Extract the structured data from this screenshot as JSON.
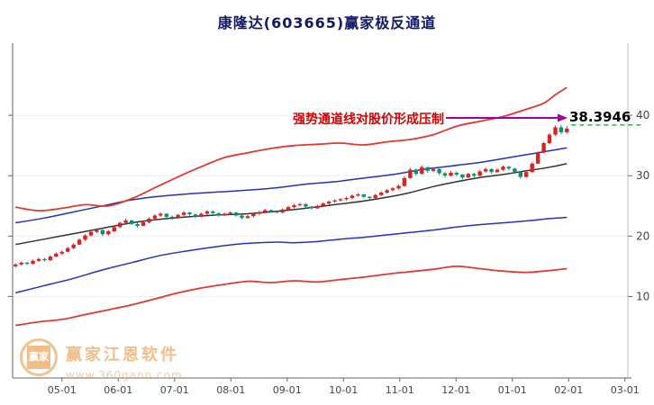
{
  "title": "康隆达(603665)赢家极反通道",
  "annotation": {
    "text": "强势通道线对股价形成压制",
    "price_label": "38.3946"
  },
  "watermark": {
    "logo_text": "赢家",
    "brand": "赢家江恩软件",
    "url": "www.360gann.com"
  },
  "chart_data": {
    "type": "candlestick",
    "title": "康隆达(603665)赢家极反通道",
    "x_tick_labels": [
      "05-01",
      "06-01",
      "07-01",
      "08-01",
      "09-01",
      "10-01",
      "11-01",
      "12-01",
      "01-01",
      "02-01",
      "03-01"
    ],
    "x_tick_indices": [
      8,
      17.7,
      27.4,
      37.1,
      46.8,
      56.5,
      66.2,
      75.9,
      85.6,
      95.3,
      105
    ],
    "total_slots": 106,
    "y_ticks": [
      10,
      20,
      30,
      40
    ],
    "ylim": [
      0,
      45
    ],
    "grid": "faint-horizontal",
    "legend": "none",
    "resistance_level": 38.3946,
    "colors": {
      "up": "#d62424",
      "down": "#0f8f72",
      "channel_outer": "#e03a2f",
      "channel_inner": "#2233bb",
      "channel_mid": "#333333",
      "resistance_line": "#0aa02e",
      "arrow": "#a0009b",
      "annotation_text": "#d40000",
      "axis": "#666666"
    },
    "ohlc": [
      [
        15.0,
        15.5,
        14.8,
        15.3
      ],
      [
        15.3,
        15.8,
        15.1,
        15.6
      ],
      [
        15.6,
        15.7,
        15.2,
        15.4
      ],
      [
        15.4,
        16.1,
        15.3,
        15.9
      ],
      [
        15.9,
        16.4,
        15.7,
        16.2
      ],
      [
        16.2,
        16.4,
        15.8,
        16.0
      ],
      [
        16.0,
        16.8,
        15.9,
        16.6
      ],
      [
        16.6,
        17.3,
        16.5,
        17.1
      ],
      [
        17.1,
        17.6,
        16.9,
        17.4
      ],
      [
        17.4,
        18.2,
        17.3,
        18.0
      ],
      [
        18.0,
        18.8,
        17.8,
        18.6
      ],
      [
        18.6,
        19.6,
        18.5,
        19.4
      ],
      [
        19.4,
        20.3,
        19.2,
        20.1
      ],
      [
        20.1,
        20.9,
        19.9,
        20.7
      ],
      [
        20.7,
        21.3,
        20.5,
        21.0
      ],
      [
        21.0,
        21.1,
        20.0,
        20.3
      ],
      [
        20.3,
        21.0,
        20.1,
        20.8
      ],
      [
        20.8,
        21.7,
        20.6,
        21.5
      ],
      [
        21.5,
        22.4,
        21.3,
        22.2
      ],
      [
        22.2,
        22.9,
        22.0,
        22.6
      ],
      [
        22.6,
        22.7,
        21.8,
        22.0
      ],
      [
        22.0,
        22.2,
        21.4,
        21.7
      ],
      [
        21.7,
        22.5,
        21.6,
        22.3
      ],
      [
        22.3,
        23.1,
        22.1,
        22.9
      ],
      [
        22.9,
        23.6,
        22.7,
        23.4
      ],
      [
        23.4,
        23.9,
        23.2,
        23.7
      ],
      [
        23.7,
        23.8,
        23.0,
        23.2
      ],
      [
        23.2,
        23.4,
        22.7,
        23.0
      ],
      [
        23.0,
        23.7,
        22.9,
        23.5
      ],
      [
        23.5,
        24.1,
        23.3,
        23.9
      ],
      [
        23.9,
        24.0,
        23.4,
        23.6
      ],
      [
        23.6,
        23.7,
        23.0,
        23.2
      ],
      [
        23.2,
        23.9,
        23.1,
        23.7
      ],
      [
        23.7,
        24.3,
        23.5,
        24.1
      ],
      [
        24.1,
        24.2,
        23.6,
        23.8
      ],
      [
        23.8,
        23.9,
        23.2,
        23.4
      ],
      [
        23.4,
        23.9,
        23.3,
        23.7
      ],
      [
        23.7,
        24.1,
        23.5,
        23.9
      ],
      [
        23.9,
        24.0,
        23.2,
        23.4
      ],
      [
        23.4,
        23.5,
        22.8,
        23.0
      ],
      [
        23.0,
        23.5,
        22.9,
        23.3
      ],
      [
        23.3,
        23.9,
        23.1,
        23.7
      ],
      [
        23.7,
        24.2,
        23.5,
        24.0
      ],
      [
        24.0,
        24.5,
        23.8,
        24.3
      ],
      [
        24.3,
        24.4,
        23.9,
        24.1
      ],
      [
        24.1,
        24.2,
        23.7,
        23.9
      ],
      [
        23.9,
        24.6,
        23.8,
        24.4
      ],
      [
        24.4,
        25.0,
        24.2,
        24.8
      ],
      [
        24.8,
        25.3,
        24.6,
        25.1
      ],
      [
        25.1,
        25.5,
        24.9,
        25.3
      ],
      [
        25.3,
        25.4,
        24.7,
        24.9
      ],
      [
        24.9,
        25.0,
        24.4,
        24.6
      ],
      [
        24.6,
        25.2,
        24.5,
        25.0
      ],
      [
        25.0,
        25.6,
        24.8,
        25.4
      ],
      [
        25.4,
        25.9,
        25.2,
        25.7
      ],
      [
        25.7,
        26.1,
        25.5,
        25.9
      ],
      [
        25.9,
        26.3,
        25.7,
        26.1
      ],
      [
        26.1,
        26.5,
        25.9,
        26.3
      ],
      [
        26.3,
        26.9,
        26.1,
        26.7
      ],
      [
        26.7,
        27.1,
        26.5,
        26.9
      ],
      [
        26.9,
        27.0,
        26.3,
        26.5
      ],
      [
        26.5,
        26.6,
        26.0,
        26.3
      ],
      [
        26.3,
        27.0,
        26.2,
        26.8
      ],
      [
        26.8,
        27.4,
        26.6,
        27.2
      ],
      [
        27.2,
        27.8,
        27.0,
        27.6
      ],
      [
        27.6,
        28.1,
        27.4,
        27.9
      ],
      [
        27.9,
        28.5,
        27.7,
        28.3
      ],
      [
        28.3,
        29.9,
        28.2,
        29.6
      ],
      [
        29.6,
        31.3,
        29.5,
        31.0
      ],
      [
        31.0,
        31.2,
        30.0,
        30.3
      ],
      [
        30.3,
        31.7,
        30.2,
        31.4
      ],
      [
        31.4,
        31.5,
        30.5,
        30.8
      ],
      [
        30.8,
        31.4,
        30.6,
        31.1
      ],
      [
        31.1,
        31.2,
        30.1,
        30.4
      ],
      [
        30.4,
        30.6,
        29.7,
        30.0
      ],
      [
        30.0,
        30.8,
        29.9,
        30.5
      ],
      [
        30.5,
        30.7,
        29.9,
        30.2
      ],
      [
        30.2,
        30.3,
        29.4,
        29.7
      ],
      [
        29.7,
        30.5,
        29.6,
        30.3
      ],
      [
        30.3,
        30.5,
        29.7,
        30.0
      ],
      [
        30.0,
        30.9,
        29.9,
        30.7
      ],
      [
        30.7,
        31.3,
        30.5,
        31.1
      ],
      [
        31.1,
        31.2,
        30.3,
        30.6
      ],
      [
        30.6,
        31.2,
        30.5,
        31.0
      ],
      [
        31.0,
        31.7,
        30.8,
        31.5
      ],
      [
        31.5,
        31.6,
        30.9,
        31.2
      ],
      [
        31.2,
        31.3,
        30.3,
        30.6
      ],
      [
        30.6,
        30.7,
        29.5,
        29.8
      ],
      [
        29.8,
        30.8,
        29.7,
        30.6
      ],
      [
        30.6,
        32.2,
        30.5,
        32.0
      ],
      [
        32.0,
        34.0,
        31.9,
        33.8
      ],
      [
        33.8,
        35.6,
        33.7,
        35.4
      ],
      [
        35.4,
        37.0,
        35.2,
        36.8
      ],
      [
        36.8,
        38.3,
        36.6,
        38.0
      ],
      [
        38.0,
        38.4,
        36.9,
        37.2
      ],
      [
        37.2,
        38.2,
        37.0,
        37.8
      ]
    ],
    "channels": {
      "upper_outer": [
        [
          0,
          24.8
        ],
        [
          4,
          24.2
        ],
        [
          8,
          24.6
        ],
        [
          12,
          25.2
        ],
        [
          16,
          25.0
        ],
        [
          20,
          26.2
        ],
        [
          24,
          28.0
        ],
        [
          28,
          29.8
        ],
        [
          32,
          31.5
        ],
        [
          36,
          33.0
        ],
        [
          40,
          33.8
        ],
        [
          44,
          34.5
        ],
        [
          48,
          35.0
        ],
        [
          52,
          35.2
        ],
        [
          56,
          35.4
        ],
        [
          60,
          35.1
        ],
        [
          64,
          35.6
        ],
        [
          68,
          36.0
        ],
        [
          72,
          36.8
        ],
        [
          76,
          38.2
        ],
        [
          80,
          39.0
        ],
        [
          84,
          39.8
        ],
        [
          88,
          41.0
        ],
        [
          91,
          42.0
        ],
        [
          93,
          43.4
        ],
        [
          95,
          44.6
        ]
      ],
      "upper_inner": [
        [
          0,
          22.2
        ],
        [
          5,
          23.0
        ],
        [
          10,
          24.0
        ],
        [
          15,
          25.0
        ],
        [
          20,
          26.0
        ],
        [
          25,
          26.6
        ],
        [
          30,
          27.0
        ],
        [
          35,
          27.3
        ],
        [
          40,
          27.6
        ],
        [
          45,
          28.0
        ],
        [
          50,
          28.6
        ],
        [
          55,
          29.0
        ],
        [
          60,
          29.6
        ],
        [
          65,
          30.2
        ],
        [
          70,
          31.0
        ],
        [
          75,
          31.6
        ],
        [
          80,
          32.2
        ],
        [
          85,
          33.0
        ],
        [
          90,
          33.8
        ],
        [
          95,
          34.6
        ]
      ],
      "middle": [
        [
          0,
          18.6
        ],
        [
          5,
          19.5
        ],
        [
          10,
          20.4
        ],
        [
          15,
          21.3
        ],
        [
          20,
          22.2
        ],
        [
          25,
          22.8
        ],
        [
          30,
          23.2
        ],
        [
          35,
          23.5
        ],
        [
          40,
          23.7
        ],
        [
          45,
          24.1
        ],
        [
          50,
          24.6
        ],
        [
          55,
          25.2
        ],
        [
          60,
          25.8
        ],
        [
          65,
          26.6
        ],
        [
          68,
          27.2
        ],
        [
          72,
          28.2
        ],
        [
          76,
          29.0
        ],
        [
          80,
          29.7
        ],
        [
          84,
          30.2
        ],
        [
          88,
          30.8
        ],
        [
          92,
          31.4
        ],
        [
          95,
          32.0
        ]
      ],
      "lower_inner": [
        [
          0,
          10.6
        ],
        [
          5,
          11.8
        ],
        [
          10,
          13.0
        ],
        [
          15,
          14.4
        ],
        [
          20,
          15.6
        ],
        [
          25,
          16.8
        ],
        [
          30,
          17.6
        ],
        [
          35,
          18.3
        ],
        [
          40,
          18.8
        ],
        [
          45,
          19.0
        ],
        [
          48,
          18.9
        ],
        [
          52,
          19.1
        ],
        [
          56,
          19.5
        ],
        [
          60,
          19.8
        ],
        [
          64,
          20.2
        ],
        [
          68,
          20.6
        ],
        [
          72,
          21.0
        ],
        [
          76,
          21.5
        ],
        [
          80,
          21.9
        ],
        [
          84,
          22.2
        ],
        [
          88,
          22.5
        ],
        [
          92,
          22.9
        ],
        [
          95,
          23.1
        ]
      ],
      "lower_outer": [
        [
          0,
          5.2
        ],
        [
          4,
          5.8
        ],
        [
          8,
          6.2
        ],
        [
          12,
          7.0
        ],
        [
          16,
          7.8
        ],
        [
          20,
          8.6
        ],
        [
          24,
          9.6
        ],
        [
          28,
          10.6
        ],
        [
          32,
          11.4
        ],
        [
          36,
          12.0
        ],
        [
          40,
          12.5
        ],
        [
          44,
          12.3
        ],
        [
          48,
          12.6
        ],
        [
          52,
          12.4
        ],
        [
          56,
          12.8
        ],
        [
          60,
          13.2
        ],
        [
          64,
          13.7
        ],
        [
          68,
          14.1
        ],
        [
          72,
          14.5
        ],
        [
          76,
          15.0
        ],
        [
          80,
          14.6
        ],
        [
          84,
          14.2
        ],
        [
          88,
          14.0
        ],
        [
          92,
          14.3
        ],
        [
          95,
          14.6
        ]
      ]
    }
  }
}
